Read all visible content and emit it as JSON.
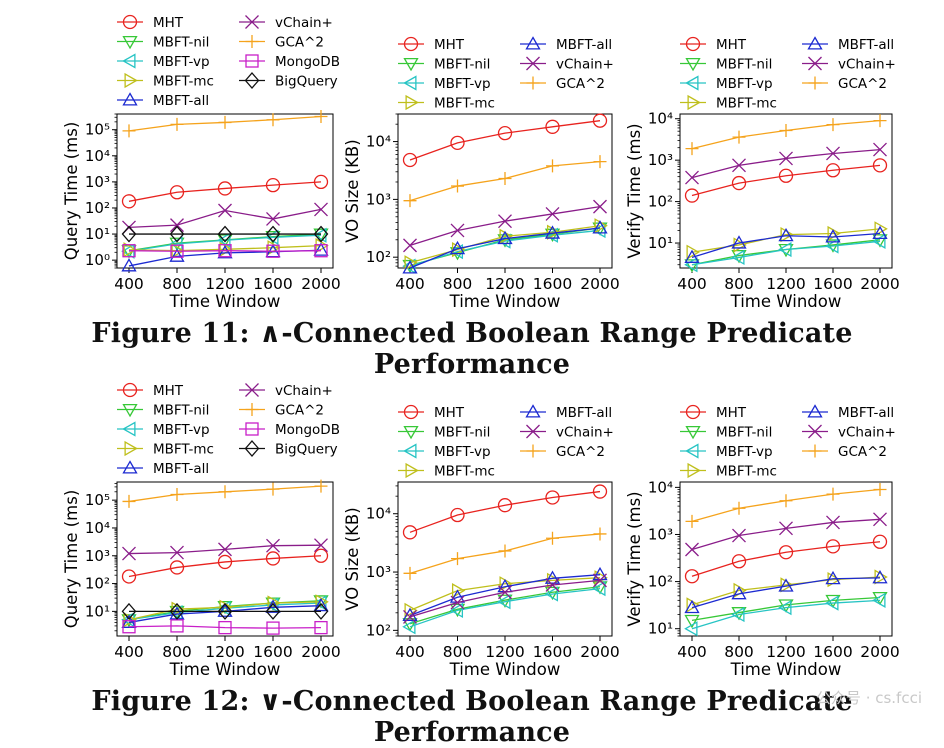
{
  "figures": [
    {
      "caption": "Figure 11: ∧-Connected Boolean Range Predicate Performance"
    },
    {
      "caption": "Figure 12: ∨-Connected Boolean Range Predicate Performance"
    }
  ],
  "watermark": "公众号 · cs.fcci",
  "styles": {
    "MHT": {
      "color": "#e8231f",
      "marker": "circle"
    },
    "MBFT-nil": {
      "color": "#37c837",
      "marker": "tri_down"
    },
    "MBFT-vp": {
      "color": "#27c4c4",
      "marker": "tri_left"
    },
    "MBFT-mc": {
      "color": "#bfbf1c",
      "marker": "tri_right"
    },
    "MBFT-all": {
      "color": "#1c2ad1",
      "marker": "tri_up"
    },
    "vChain+": {
      "color": "#8a1d8a",
      "marker": "x"
    },
    "GCA^2": {
      "color": "#f5a31c",
      "marker": "plus"
    },
    "MongoDB": {
      "color": "#c81fc8",
      "marker": "square"
    },
    "BigQuery": {
      "color": "#111111",
      "marker": "diamond"
    }
  },
  "chart_data": [
    {
      "type": "line",
      "figure": 0,
      "panel": 0,
      "title": "",
      "xlabel": "Time Window",
      "ylabel": "Query Time (ms)",
      "yscale": "log",
      "ylim": [
        0.5,
        400000
      ],
      "yticks": [
        1,
        10,
        100,
        1000,
        10000,
        100000
      ],
      "yticklabels": [
        "10⁰",
        "10¹",
        "10²",
        "10³",
        "10⁴",
        "10⁵"
      ],
      "x": [
        400,
        800,
        1200,
        1600,
        2000
      ],
      "xticklabels": [
        "400",
        "800",
        "1200",
        "1600",
        "2000"
      ],
      "legend": [
        "MHT",
        "vChain+",
        "MBFT-nil",
        "GCA^2",
        "MBFT-vp",
        "MongoDB",
        "MBFT-mc",
        "BigQuery",
        "MBFT-all"
      ],
      "legend_layout": "two-column, top",
      "series": [
        {
          "name": "MHT",
          "values": [
            180,
            400,
            560,
            750,
            1000
          ]
        },
        {
          "name": "MBFT-nil",
          "values": [
            2.3,
            4.5,
            6,
            8,
            10
          ]
        },
        {
          "name": "MBFT-vp",
          "values": [
            2.2,
            4.2,
            5.8,
            7.5,
            9
          ]
        },
        {
          "name": "MBFT-mc",
          "values": [
            2.5,
            2.3,
            2.6,
            3.0,
            3.6
          ]
        },
        {
          "name": "MBFT-all",
          "values": [
            0.6,
            1.4,
            1.9,
            2.1,
            2.4
          ]
        },
        {
          "name": "vChain+",
          "values": [
            18,
            22,
            80,
            38,
            88
          ]
        },
        {
          "name": "GCA^2",
          "values": [
            90000,
            160000,
            190000,
            240000,
            320000
          ]
        },
        {
          "name": "MongoDB",
          "values": [
            2.3,
            2.2,
            2.3,
            2.2,
            2.3
          ]
        },
        {
          "name": "BigQuery",
          "values": [
            10,
            10,
            10,
            10,
            10
          ]
        }
      ]
    },
    {
      "type": "line",
      "figure": 0,
      "panel": 1,
      "title": "",
      "xlabel": "Time Window",
      "ylabel": "VO Size (KB)",
      "yscale": "log",
      "ylim": [
        65,
        30000
      ],
      "yticks": [
        100,
        1000,
        10000
      ],
      "yticklabels": [
        "10²",
        "10³",
        "10⁴"
      ],
      "x": [
        400,
        800,
        1200,
        1600,
        2000
      ],
      "xticklabels": [
        "400",
        "800",
        "1200",
        "1600",
        "2000"
      ],
      "legend": [
        "MHT",
        "MBFT-all",
        "MBFT-nil",
        "vChain+",
        "MBFT-vp",
        "GCA^2",
        "MBFT-mc"
      ],
      "legend_layout": "two-column, top",
      "series": [
        {
          "name": "MHT",
          "values": [
            4800,
            9500,
            14000,
            18000,
            23000
          ]
        },
        {
          "name": "MBFT-nil",
          "values": [
            72,
            120,
            200,
            250,
            320
          ]
        },
        {
          "name": "MBFT-vp",
          "values": [
            70,
            125,
            190,
            240,
            290
          ]
        },
        {
          "name": "MBFT-mc",
          "values": [
            80,
            135,
            230,
            270,
            350
          ]
        },
        {
          "name": "MBFT-all",
          "values": [
            65,
            140,
            210,
            260,
            320
          ]
        },
        {
          "name": "vChain+",
          "values": [
            160,
            290,
            420,
            560,
            750
          ]
        },
        {
          "name": "GCA^2",
          "values": [
            950,
            1700,
            2300,
            3800,
            4500
          ]
        }
      ]
    },
    {
      "type": "line",
      "figure": 0,
      "panel": 2,
      "title": "",
      "xlabel": "Time Window",
      "ylabel": "Verify Time (ms)",
      "yscale": "log",
      "ylim": [
        2.5,
        13000
      ],
      "yticks": [
        10,
        100,
        1000,
        10000
      ],
      "yticklabels": [
        "10¹",
        "10²",
        "10³",
        "10⁴"
      ],
      "x": [
        400,
        800,
        1200,
        1600,
        2000
      ],
      "xticklabels": [
        "400",
        "800",
        "1200",
        "1600",
        "2000"
      ],
      "legend": [
        "MHT",
        "MBFT-all",
        "MBFT-nil",
        "vChain+",
        "MBFT-vp",
        "GCA^2",
        "MBFT-mc"
      ],
      "legend_layout": "two-column, top",
      "series": [
        {
          "name": "MHT",
          "values": [
            140,
            280,
            420,
            570,
            750
          ]
        },
        {
          "name": "MBFT-nil",
          "values": [
            3,
            5,
            7,
            9,
            12
          ]
        },
        {
          "name": "MBFT-vp",
          "values": [
            3,
            4.5,
            7,
            8.5,
            11
          ]
        },
        {
          "name": "MBFT-mc",
          "values": [
            6,
            9,
            16,
            17,
            22
          ]
        },
        {
          "name": "MBFT-all",
          "values": [
            4.5,
            10,
            15,
            14,
            17
          ]
        },
        {
          "name": "vChain+",
          "values": [
            380,
            750,
            1100,
            1450,
            1800
          ]
        },
        {
          "name": "GCA^2",
          "values": [
            1900,
            3600,
            5200,
            7200,
            9000
          ]
        }
      ]
    },
    {
      "type": "line",
      "figure": 1,
      "panel": 0,
      "title": "",
      "xlabel": "Time Window",
      "ylabel": "Query Time (ms)",
      "yscale": "log",
      "ylim": [
        1.3,
        450000
      ],
      "yticks": [
        10,
        100,
        1000,
        10000,
        100000
      ],
      "yticklabels": [
        "10¹",
        "10²",
        "10³",
        "10⁴",
        "10⁵"
      ],
      "x": [
        400,
        800,
        1200,
        1600,
        2000
      ],
      "xticklabels": [
        "400",
        "800",
        "1200",
        "1600",
        "2000"
      ],
      "legend": [
        "MHT",
        "vChain+",
        "MBFT-nil",
        "GCA^2",
        "MBFT-vp",
        "MongoDB",
        "MBFT-mc",
        "BigQuery",
        "MBFT-all"
      ],
      "legend_layout": "two-column, top",
      "series": [
        {
          "name": "MHT",
          "values": [
            180,
            380,
            600,
            800,
            1000
          ]
        },
        {
          "name": "MBFT-nil",
          "values": [
            5,
            10,
            15,
            20,
            24
          ]
        },
        {
          "name": "MBFT-vp",
          "values": [
            5,
            9,
            13,
            17,
            20
          ]
        },
        {
          "name": "MBFT-mc",
          "values": [
            5,
            12,
            14,
            20,
            22
          ]
        },
        {
          "name": "MBFT-all",
          "values": [
            4,
            8,
            10,
            14,
            16
          ]
        },
        {
          "name": "vChain+",
          "values": [
            1200,
            1300,
            1700,
            2300,
            2400
          ]
        },
        {
          "name": "GCA^2",
          "values": [
            90000,
            160000,
            200000,
            250000,
            320000
          ]
        },
        {
          "name": "MongoDB",
          "values": [
            2.8,
            3.0,
            2.6,
            2.5,
            2.6
          ]
        },
        {
          "name": "BigQuery",
          "values": [
            10,
            10,
            10,
            10,
            10
          ]
        }
      ]
    },
    {
      "type": "line",
      "figure": 1,
      "panel": 1,
      "title": "",
      "xlabel": "Time Window",
      "ylabel": "VO Size (KB)",
      "yscale": "log",
      "ylim": [
        80,
        35000
      ],
      "yticks": [
        100,
        1000,
        10000
      ],
      "yticklabels": [
        "10²",
        "10³",
        "10⁴"
      ],
      "x": [
        400,
        800,
        1200,
        1600,
        2000
      ],
      "xticklabels": [
        "400",
        "800",
        "1200",
        "1600",
        "2000"
      ],
      "legend": [
        "MHT",
        "MBFT-all",
        "MBFT-nil",
        "vChain+",
        "MBFT-vp",
        "GCA^2",
        "MBFT-mc"
      ],
      "legend_layout": "two-column, top",
      "series": [
        {
          "name": "MHT",
          "values": [
            4800,
            9500,
            14000,
            19000,
            24000
          ]
        },
        {
          "name": "MBFT-nil",
          "values": [
            130,
            230,
            330,
            450,
            560
          ]
        },
        {
          "name": "MBFT-vp",
          "values": [
            115,
            220,
            310,
            420,
            520
          ]
        },
        {
          "name": "MBFT-mc",
          "values": [
            220,
            480,
            630,
            720,
            800
          ]
        },
        {
          "name": "MBFT-all",
          "values": [
            180,
            370,
            560,
            780,
            900
          ]
        },
        {
          "name": "vChain+",
          "values": [
            170,
            300,
            450,
            600,
            720
          ]
        },
        {
          "name": "GCA^2",
          "values": [
            950,
            1700,
            2300,
            3800,
            4500
          ]
        }
      ]
    },
    {
      "type": "line",
      "figure": 1,
      "panel": 2,
      "title": "",
      "xlabel": "Time Window",
      "ylabel": "Verify Time (ms)",
      "yscale": "log",
      "ylim": [
        7,
        13000
      ],
      "yticks": [
        10,
        100,
        1000,
        10000
      ],
      "yticklabels": [
        "10¹",
        "10²",
        "10³",
        "10⁴"
      ],
      "x": [
        400,
        800,
        1200,
        1600,
        2000
      ],
      "xticklabels": [
        "400",
        "800",
        "1200",
        "1600",
        "2000"
      ],
      "legend": [
        "MHT",
        "MBFT-all",
        "MBFT-nil",
        "vChain+",
        "MBFT-vp",
        "GCA^2",
        "MBFT-mc"
      ],
      "legend_layout": "two-column, top",
      "series": [
        {
          "name": "MHT",
          "values": [
            130,
            270,
            420,
            560,
            700
          ]
        },
        {
          "name": "MBFT-nil",
          "values": [
            15,
            22,
            32,
            40,
            46
          ]
        },
        {
          "name": "MBFT-vp",
          "values": [
            10,
            20,
            28,
            35,
            40
          ]
        },
        {
          "name": "MBFT-mc",
          "values": [
            32,
            65,
            85,
            110,
            125
          ]
        },
        {
          "name": "MBFT-all",
          "values": [
            28,
            55,
            80,
            115,
            120
          ]
        },
        {
          "name": "vChain+",
          "values": [
            480,
            950,
            1350,
            1800,
            2100
          ]
        },
        {
          "name": "GCA^2",
          "values": [
            1900,
            3600,
            5200,
            7200,
            9000
          ]
        }
      ]
    }
  ]
}
